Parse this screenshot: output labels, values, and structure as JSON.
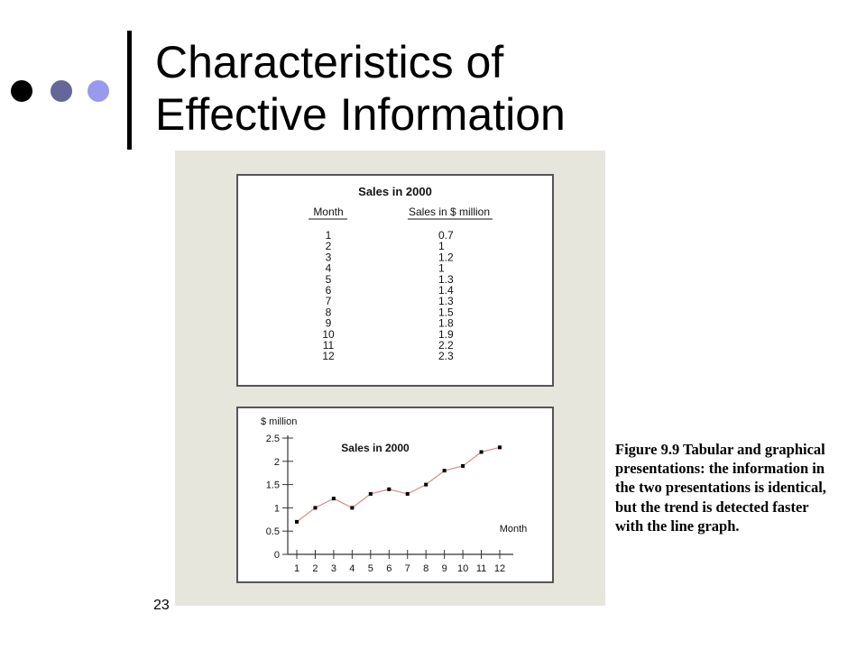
{
  "slide": {
    "title_line1": "Characteristics of",
    "title_line2": "Effective Information",
    "slide_number": "23",
    "caption": "Figure 9.9 Tabular and graphical presentations: the information in the two presentations is identical, but the trend is detected faster with the line graph.",
    "bullet_colors": [
      "#000000",
      "#66669a",
      "#9999ee"
    ]
  },
  "table": {
    "title": "Sales in 2000",
    "columns": [
      "Month",
      "Sales in $ million"
    ],
    "rows": [
      [
        "1",
        "0.7"
      ],
      [
        "2",
        "1"
      ],
      [
        "3",
        "1.2"
      ],
      [
        "4",
        "1"
      ],
      [
        "5",
        "1.3"
      ],
      [
        "6",
        "1.4"
      ],
      [
        "7",
        "1.3"
      ],
      [
        "8",
        "1.5"
      ],
      [
        "9",
        "1.8"
      ],
      [
        "10",
        "1.9"
      ],
      [
        "11",
        "2.2"
      ],
      [
        "12",
        "2.3"
      ]
    ]
  },
  "chart_data": {
    "type": "line",
    "title": "Sales in 2000",
    "xlabel": "Month",
    "ylabel": "$ million",
    "x": [
      1,
      2,
      3,
      4,
      5,
      6,
      7,
      8,
      9,
      10,
      11,
      12
    ],
    "x_ticks": [
      "1",
      "2",
      "3",
      "4",
      "5",
      "6",
      "7",
      "8",
      "9",
      "10",
      "11",
      "12"
    ],
    "y_ticks": [
      "0",
      "0.5",
      "1",
      "1.5",
      "2",
      "2.5"
    ],
    "series": [
      {
        "values": [
          0.7,
          1,
          1.2,
          1,
          1.3,
          1.4,
          1.3,
          1.5,
          1.8,
          1.9,
          2.2,
          2.3
        ]
      }
    ],
    "ylim": [
      0,
      2.5
    ],
    "xlim": [
      1,
      12
    ],
    "grid": false,
    "line_color": "#d98a8a",
    "marker_color": "#000000"
  }
}
